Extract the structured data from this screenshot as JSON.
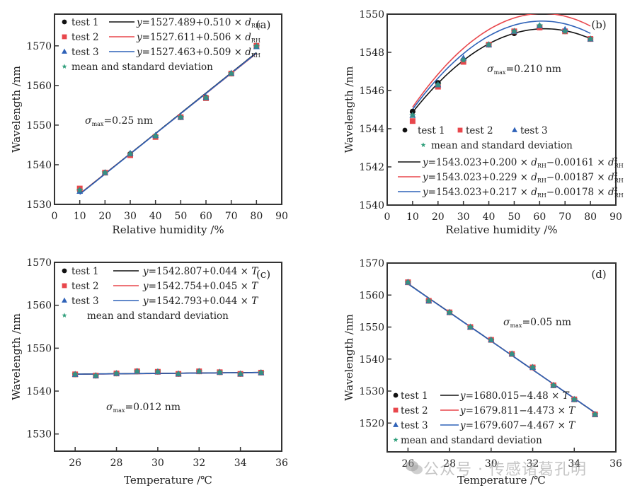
{
  "colors": {
    "test1": "#111111",
    "test2": "#e8474c",
    "test3": "#2f62b8",
    "mean": "#2e9e7a",
    "frame": "#333333"
  },
  "watermark": {
    "text": "公众号 · 传感诸葛孔明",
    "icon": "wechat-icon"
  },
  "chart_data": [
    {
      "id": "a",
      "type": "scatter",
      "panel_tag": "(a)",
      "xlabel": "Relative humidity /%",
      "ylabel": "Wavelength /nm",
      "xlim": [
        0,
        90
      ],
      "ylim": [
        1530,
        1578
      ],
      "xticks": [
        0,
        10,
        20,
        30,
        40,
        50,
        60,
        70,
        80,
        90
      ],
      "yticks": [
        1530,
        1540,
        1550,
        1560,
        1570
      ],
      "annotation": {
        "sigma": "σ",
        "sub": "max",
        "text": "=0.25 nm"
      },
      "legend_placement": "top-left",
      "x": [
        10,
        20,
        30,
        40,
        50,
        60,
        70,
        80
      ],
      "series": [
        {
          "name": "test 1",
          "marker": "circle",
          "values": [
            1533.6,
            1538.0,
            1542.7,
            1547.2,
            1552.0,
            1557.0,
            1563.0,
            1570.0
          ],
          "fit": {
            "eq": "y=1527.489+0.510 × d",
            "sub": "RH",
            "a": 1527.489,
            "b": 0.51,
            "c": 0
          }
        },
        {
          "name": "test 2",
          "marker": "square",
          "values": [
            1534.0,
            1538.0,
            1542.4,
            1547.0,
            1552.0,
            1556.8,
            1563.0,
            1570.0
          ],
          "fit": {
            "eq": "y=1527.611+0.506 × d",
            "sub": "RH",
            "a": 1527.611,
            "b": 0.506,
            "c": 0
          }
        },
        {
          "name": "test 3",
          "marker": "triangle",
          "values": [
            1533.3,
            1538.0,
            1542.9,
            1547.4,
            1552.0,
            1557.0,
            1563.1,
            1569.8
          ],
          "fit": {
            "eq": "y=1527.463+0.509 × d",
            "sub": "RH",
            "a": 1527.463,
            "b": 0.509,
            "c": 0
          }
        },
        {
          "name": "mean and standard deviation",
          "marker": "star",
          "values": [
            1533.6,
            1538.0,
            1542.7,
            1547.2,
            1552.0,
            1556.9,
            1563.0,
            1569.9
          ]
        }
      ]
    },
    {
      "id": "b",
      "type": "scatter",
      "panel_tag": "(b)",
      "xlabel": "Relative humidity /%",
      "ylabel": "Wavelength /nm",
      "xlim": [
        0,
        90
      ],
      "ylim": [
        1540,
        1550
      ],
      "xticks": [
        0,
        10,
        20,
        30,
        40,
        50,
        60,
        70,
        80,
        90
      ],
      "yticks": [
        1540,
        1542,
        1544,
        1546,
        1548,
        1550
      ],
      "annotation": {
        "sigma": "σ",
        "sub": "max",
        "text": "=0.210 nm"
      },
      "legend_placement": "bottom",
      "x": [
        10,
        20,
        30,
        40,
        50,
        60,
        70,
        80
      ],
      "series": [
        {
          "name": "test 1",
          "marker": "circle",
          "values": [
            1544.9,
            1546.4,
            1547.6,
            1548.4,
            1549.0,
            1549.3,
            1549.1,
            1548.7
          ],
          "fit": {
            "eq": "y=1543.023+0.200 × d",
            "sub": "RH",
            "eq2": "−0.00161 × d",
            "sup": "2",
            "sub2": "RH",
            "a": 1543.023,
            "b": 0.2,
            "c": -0.00161
          }
        },
        {
          "name": "test 2",
          "marker": "square",
          "values": [
            1544.4,
            1546.2,
            1547.5,
            1548.4,
            1549.1,
            1549.3,
            1549.1,
            1548.7
          ],
          "fit": {
            "eq": "y=1543.023+0.229 × d",
            "sub": "RH",
            "eq2": "−0.00187 × d",
            "sup": "2",
            "sub2": "RH",
            "a": 1543.023,
            "b": 0.229,
            "c": -0.00187
          }
        },
        {
          "name": "test 3",
          "marker": "triangle",
          "values": [
            1544.7,
            1546.3,
            1547.7,
            1548.4,
            1549.1,
            1549.4,
            1549.2,
            1548.7
          ],
          "fit": {
            "eq": "y=1543.023+0.217 × d",
            "sub": "RH",
            "eq2": "−0.00178 × d",
            "sup": "2",
            "sub2": "RH",
            "a": 1543.023,
            "b": 0.217,
            "c": -0.00178
          }
        },
        {
          "name": "mean and standard deviation",
          "marker": "star",
          "values": [
            1544.7,
            1546.3,
            1547.6,
            1548.4,
            1549.1,
            1549.4,
            1549.1,
            1548.7
          ]
        }
      ]
    },
    {
      "id": "c",
      "type": "scatter",
      "panel_tag": "(c)",
      "xlabel": "Temperature /℃",
      "ylabel": "Wavelength /nm",
      "xlim": [
        25,
        36
      ],
      "ylim": [
        1526,
        1570
      ],
      "xticks": [
        26,
        28,
        30,
        32,
        34,
        36
      ],
      "yticks": [
        1530,
        1540,
        1550,
        1560,
        1570
      ],
      "annotation": {
        "sigma": "σ",
        "sub": "max",
        "text": "=0.012 nm"
      },
      "legend_placement": "top-left",
      "x": [
        26,
        27,
        28,
        29,
        30,
        31,
        32,
        33,
        34,
        35
      ],
      "series": [
        {
          "name": "test 1",
          "marker": "circle",
          "values": [
            1543.9,
            1543.6,
            1544.1,
            1544.6,
            1544.5,
            1544.0,
            1544.6,
            1544.4,
            1544.0,
            1544.3
          ],
          "fit": {
            "eq": "y=1542.807+0.044 × T",
            "a": 1542.807,
            "b": 0.044,
            "c": 0
          }
        },
        {
          "name": "test 2",
          "marker": "square",
          "values": [
            1543.9,
            1543.6,
            1544.1,
            1544.6,
            1544.5,
            1544.0,
            1544.6,
            1544.4,
            1544.0,
            1544.3
          ],
          "fit": {
            "eq": "y=1542.754+0.045 × T",
            "a": 1542.754,
            "b": 0.045,
            "c": 0
          }
        },
        {
          "name": "test 3",
          "marker": "triangle",
          "values": [
            1543.9,
            1543.6,
            1544.1,
            1544.6,
            1544.5,
            1544.0,
            1544.6,
            1544.4,
            1544.0,
            1544.3
          ],
          "fit": {
            "eq": "y=1542.793+0.044 × T",
            "a": 1542.793,
            "b": 0.044,
            "c": 0
          }
        },
        {
          "name": "mean and standard deviation",
          "marker": "star",
          "values": [
            1543.9,
            1543.6,
            1544.1,
            1544.6,
            1544.5,
            1544.0,
            1544.6,
            1544.4,
            1544.0,
            1544.3
          ]
        }
      ]
    },
    {
      "id": "d",
      "type": "scatter",
      "panel_tag": "(d)",
      "xlabel": "Temperature /℃",
      "ylabel": "Wavelength /nm",
      "xlim": [
        25,
        36
      ],
      "ylim": [
        1511,
        1570
      ],
      "xticks": [
        26,
        28,
        30,
        32,
        34,
        36
      ],
      "yticks": [
        1520,
        1530,
        1540,
        1550,
        1560,
        1570
      ],
      "annotation": {
        "sigma": "σ",
        "sub": "max",
        "text": "=0.05 nm"
      },
      "legend_placement": "bottom-left",
      "x": [
        26,
        27,
        28,
        29,
        30,
        31,
        32,
        33,
        34,
        35
      ],
      "series": [
        {
          "name": "test 1",
          "marker": "circle",
          "values": [
            1564.0,
            1558.2,
            1554.6,
            1550.0,
            1546.0,
            1541.6,
            1537.4,
            1531.8,
            1527.4,
            1522.7
          ],
          "fit": {
            "eq": "y=1680.015−4.48 × T",
            "a": 1680.015,
            "b": -4.48,
            "c": 0
          }
        },
        {
          "name": "test 2",
          "marker": "square",
          "values": [
            1564.0,
            1558.2,
            1554.6,
            1550.0,
            1546.0,
            1541.6,
            1537.4,
            1531.8,
            1527.4,
            1522.7
          ],
          "fit": {
            "eq": "y=1679.811−4.473 × T",
            "a": 1679.811,
            "b": -4.473,
            "c": 0
          }
        },
        {
          "name": "test 3",
          "marker": "triangle",
          "values": [
            1564.0,
            1558.2,
            1554.6,
            1550.0,
            1546.0,
            1541.6,
            1537.4,
            1531.8,
            1527.4,
            1522.7
          ],
          "fit": {
            "eq": "y=1679.607−4.467 × T",
            "a": 1679.607,
            "b": -4.467,
            "c": 0
          }
        },
        {
          "name": "mean and standard deviation",
          "marker": "star",
          "values": [
            1564.0,
            1558.2,
            1554.6,
            1550.0,
            1546.0,
            1541.6,
            1537.4,
            1531.8,
            1527.4,
            1522.7
          ]
        }
      ]
    }
  ]
}
